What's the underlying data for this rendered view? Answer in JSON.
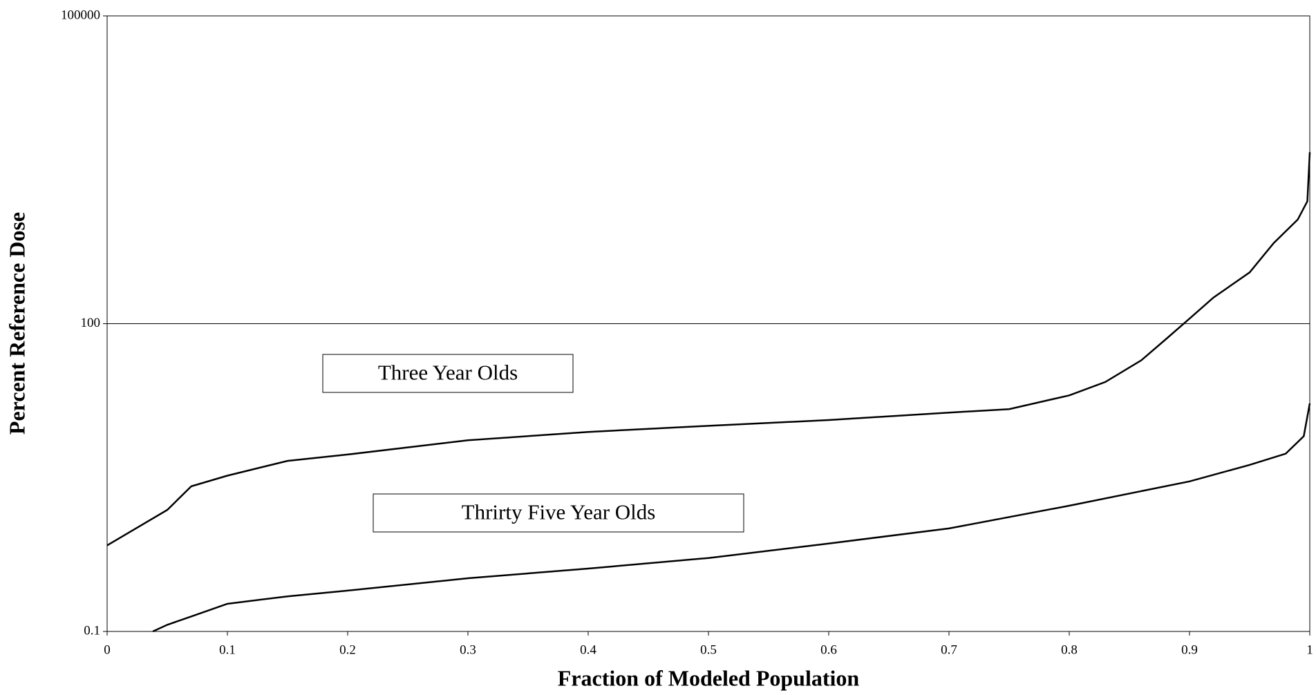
{
  "chart_data": {
    "type": "line",
    "x_label": "Fraction of Modeled Population",
    "y_label": "Percent Reference Dose",
    "xlim": [
      0,
      1
    ],
    "xticks": [
      0,
      0.1,
      0.2,
      0.3,
      0.4,
      0.5,
      0.6,
      0.7,
      0.8,
      0.9,
      1
    ],
    "ylim": [
      0.1,
      100000
    ],
    "yticks": [
      0.1,
      100,
      100000
    ],
    "y_log": true,
    "grid": true,
    "series": [
      {
        "name": "Three Year Olds",
        "color": "#000000",
        "x": [
          0,
          0.05,
          0.07,
          0.1,
          0.15,
          0.2,
          0.3,
          0.4,
          0.5,
          0.6,
          0.7,
          0.75,
          0.8,
          0.83,
          0.86,
          0.88,
          0.9,
          0.92,
          0.95,
          0.97,
          0.99,
          0.998,
          1
        ],
        "values": [
          0.69,
          1.53,
          2.6,
          3.3,
          4.6,
          5.3,
          7.3,
          8.8,
          10.1,
          11.5,
          13.6,
          14.7,
          20,
          27,
          44,
          70,
          112,
          180,
          316,
          611,
          1035,
          1560,
          4690
        ]
      },
      {
        "name": "Thrirty Five Year Olds",
        "color": "#000000",
        "x": [
          0.038,
          0.05,
          0.07,
          0.1,
          0.15,
          0.2,
          0.3,
          0.4,
          0.5,
          0.6,
          0.7,
          0.8,
          0.9,
          0.95,
          0.98,
          0.995,
          1
        ],
        "values": [
          0.1,
          0.116,
          0.14,
          0.186,
          0.22,
          0.25,
          0.33,
          0.41,
          0.52,
          0.72,
          1.01,
          1.68,
          2.9,
          4.2,
          5.4,
          8.0,
          16.7
        ]
      }
    ]
  }
}
